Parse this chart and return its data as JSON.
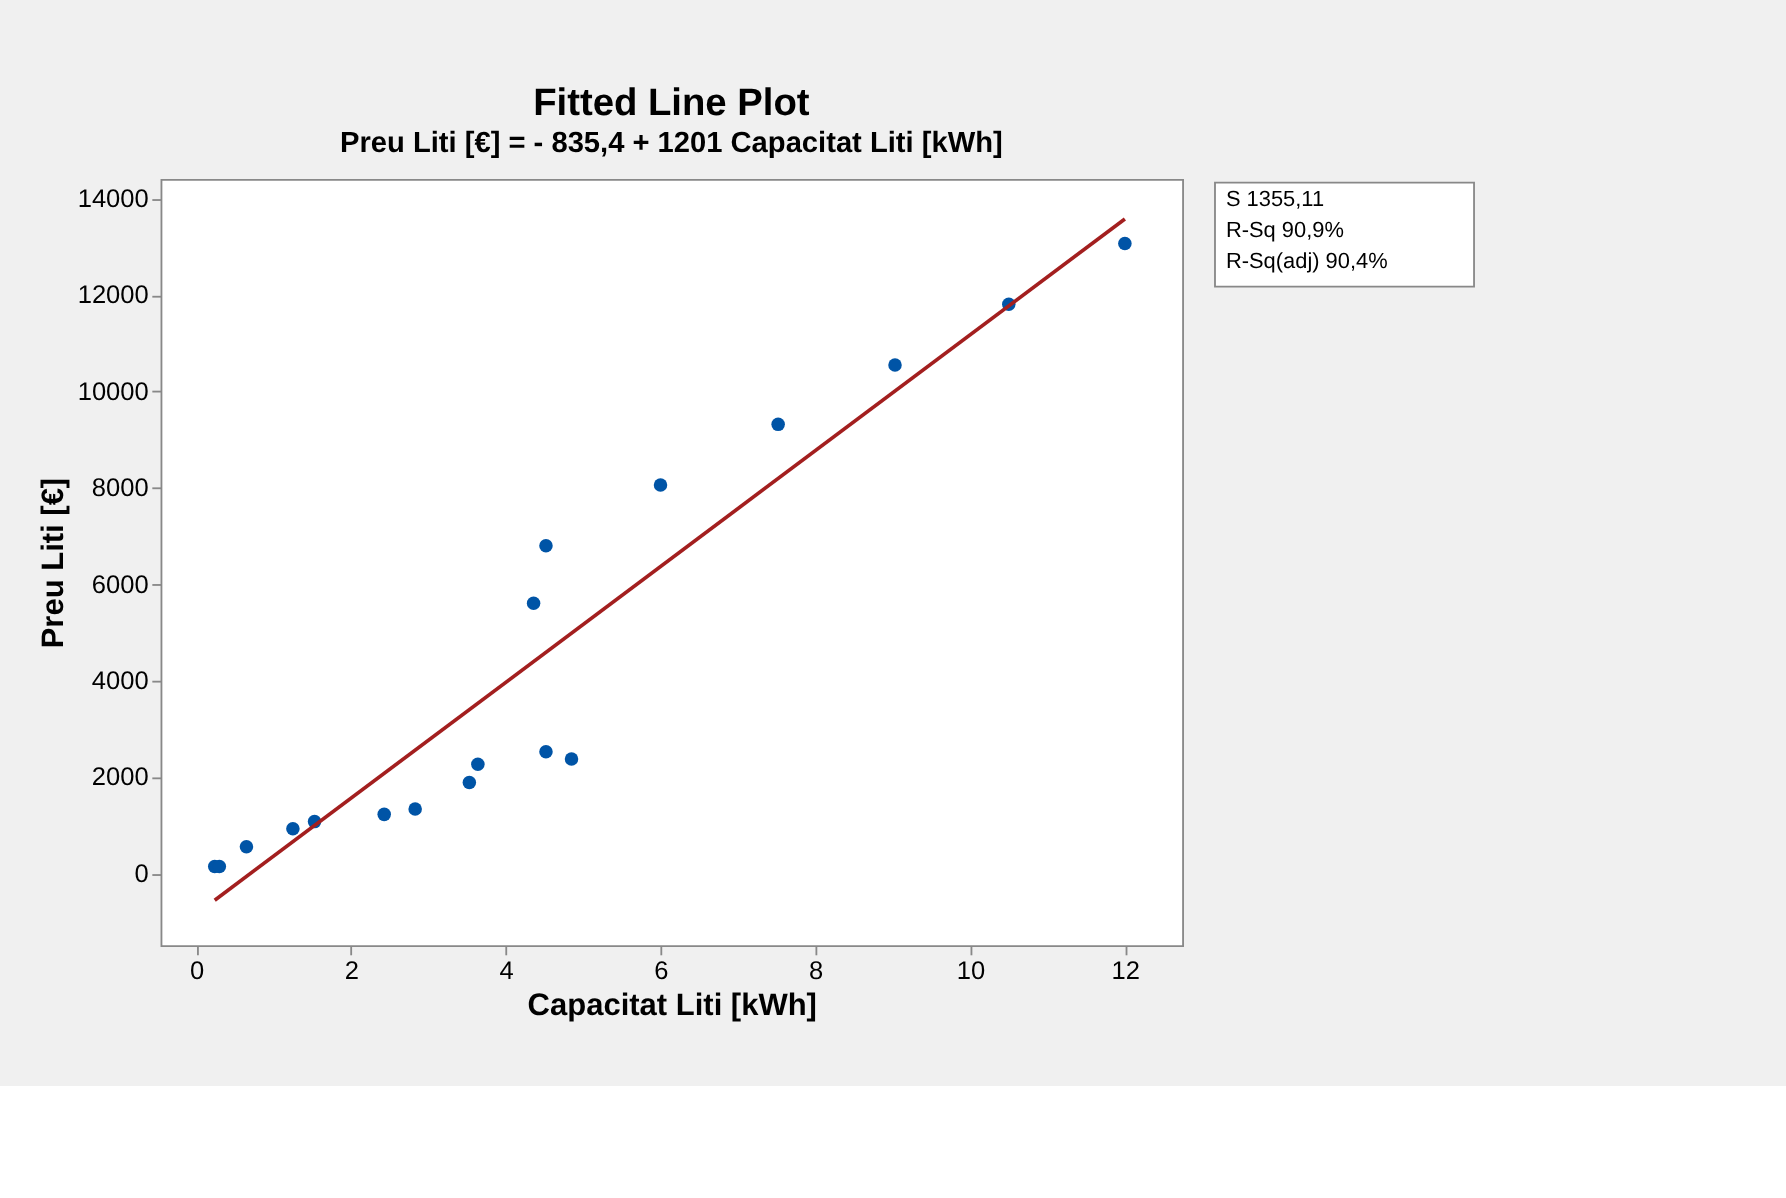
{
  "chart_data": {
    "type": "scatter",
    "title": "Fitted Line Plot",
    "subtitle": "Preu Liti [€] = - 835,4 + 1201 Capacitat Liti [kWh]",
    "xlabel": "Capacitat Liti [kWh]",
    "ylabel": "Preu Liti [€]",
    "xlim": [
      -0.46,
      12.74
    ],
    "ylim": [
      -1485,
      14408
    ],
    "xticks": [
      0,
      2,
      4,
      6,
      8,
      10,
      12
    ],
    "yticks": [
      0,
      2000,
      4000,
      6000,
      8000,
      10000,
      12000,
      14000
    ],
    "grid": false,
    "series": [
      {
        "marker": "circle",
        "color": "#0054a6",
        "x": [
          0.24,
          0.3,
          0.65,
          1.25,
          1.53,
          2.43,
          2.83,
          3.53,
          3.64,
          4.36,
          4.52,
          4.52,
          4.85,
          6.0,
          7.52,
          9.03,
          10.5,
          12.0
        ],
        "values": [
          150,
          150,
          560,
          930,
          1080,
          1230,
          1340,
          1890,
          2270,
          5610,
          6800,
          2530,
          2380,
          8060,
          9320,
          10550,
          11810,
          13070
        ]
      },
      {
        "type": "line",
        "marker": "none",
        "color": "#a31f1f",
        "line_style": "solid",
        "x": [
          0.24,
          12.0
        ],
        "values": [
          -550,
          13580
        ]
      }
    ],
    "annotations": [
      "S  1355,11",
      "R-Sq  90,9%",
      "R-Sq(adj)  90,4%"
    ]
  }
}
